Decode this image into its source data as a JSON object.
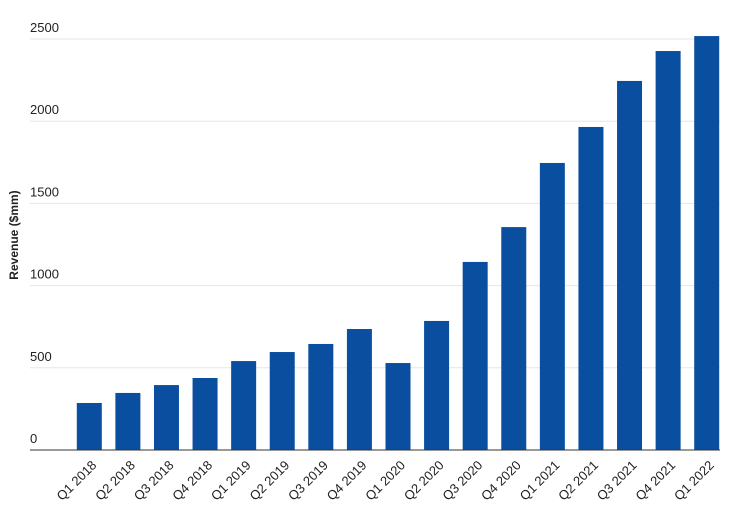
{
  "chart_data": {
    "type": "bar",
    "y_label": "Revenue ($mm)",
    "categories": [
      "Q1 2018",
      "Q2 2018",
      "Q3 2018",
      "Q4 2018",
      "Q1 2019",
      "Q2 2019",
      "Q3 2019",
      "Q4 2019",
      "Q1 2020",
      "Q2 2020",
      "Q3 2020",
      "Q4 2020",
      "Q1 2021",
      "Q2 2021",
      "Q3 2021",
      "Q4 2021",
      "Q1 2022"
    ],
    "values": [
      286,
      347,
      395,
      438,
      541,
      596,
      645,
      736,
      529,
      785,
      1144,
      1356,
      1746,
      1965,
      2245,
      2427,
      2518
    ],
    "color": "#0a4f9f",
    "ylim": [
      0,
      2550
    ],
    "yticks": [
      0,
      500,
      1000,
      1500,
      2000,
      2500
    ],
    "grid": true
  }
}
